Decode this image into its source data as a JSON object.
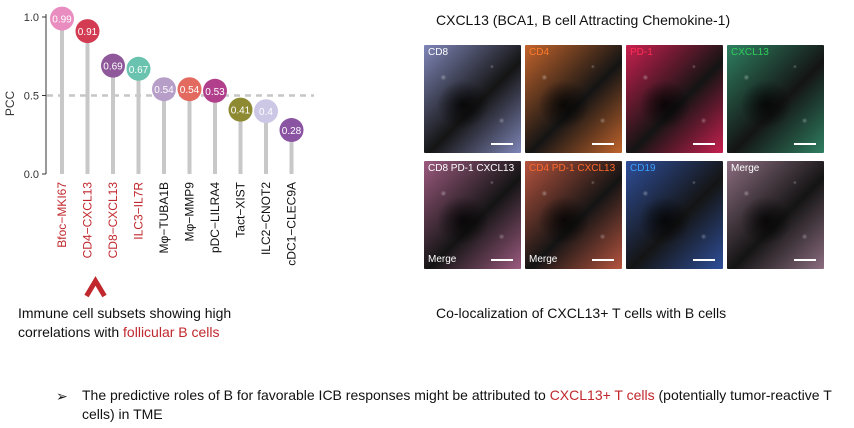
{
  "chart_data": {
    "type": "lollipop",
    "ylabel": "PCC",
    "ylim": [
      0,
      1.0
    ],
    "yticks": [
      "0.0",
      "0.5",
      "1.0"
    ],
    "reference_line": 0.5,
    "categories": [
      "Bfoc−MKI67",
      "CD4−CXCL13",
      "CD8−CXCL13",
      "ILC3−IL7R",
      "Mφ−TUBA1B",
      "Mφ−MMP9",
      "pDC−LILRA4",
      "Tact−XIST",
      "ILC2−CNOT2",
      "cDC1−CLEC9A"
    ],
    "values": [
      0.99,
      0.91,
      0.69,
      0.67,
      0.54,
      0.54,
      0.53,
      0.41,
      0.4,
      0.28
    ],
    "value_labels": [
      "0.99",
      "0.91",
      "0.69",
      "0.67",
      "0.54",
      "0.54",
      "0.53",
      "0.41",
      "0.4",
      "0.28"
    ],
    "colors": [
      "#e98cbf",
      "#d33b53",
      "#8f589a",
      "#6ac3ae",
      "#b79ec9",
      "#e36a5e",
      "#b13f8c",
      "#8e8a31",
      "#cbc7e4",
      "#8a54a3"
    ],
    "label_colors": [
      "#c0282d",
      "#c0282d",
      "#c0282d",
      "#c0282d",
      "#111111",
      "#111111",
      "#111111",
      "#111111",
      "#111111",
      "#111111"
    ],
    "highlight_arrow_index": 1
  },
  "left_caption": {
    "line1": "Immune cell subsets showing high",
    "line2_prefix": "correlations with ",
    "line2_highlight": "follicular B cells"
  },
  "right_panel": {
    "title": "CXCL13 (BCA1, B cell Attracting Chemokine-1)",
    "tiles": [
      {
        "label": "CD8",
        "label_color": "#ffffff",
        "tint": "#7f86b8",
        "merge": ""
      },
      {
        "label": "CD4",
        "label_color": "#ff7a2a",
        "tint": "#c2642c",
        "merge": ""
      },
      {
        "label": "PD-1",
        "label_color": "#ff2d55",
        "tint": "#c8204f",
        "merge": ""
      },
      {
        "label": "CXCL13",
        "label_color": "#2fcf5a",
        "tint": "#2f7f62",
        "merge": ""
      },
      {
        "label": "CD8 PD-1 CXCL13",
        "label_color": "#ffffff",
        "tint": "#9c5a7f",
        "merge": "Merge"
      },
      {
        "label": "CD4 PD-1 CXCL13",
        "label_color": "#ff6a2a",
        "tint": "#b6543f",
        "merge": "Merge"
      },
      {
        "label": "CD19",
        "label_color": "#3aa0ff",
        "tint": "#2f4f9a",
        "merge": ""
      },
      {
        "label": "Merge",
        "label_color": "#ffffff",
        "tint": "#8c6d80",
        "merge": ""
      }
    ],
    "caption": "Co-localization of CXCL13+ T cells with B cells"
  },
  "bullet": {
    "marker": "➢",
    "text_prefix": "The predictive roles of B for favorable ICB responses might be attributed to ",
    "text_highlight": "CXCL13+ T cells",
    "text_suffix": " (potentially tumor-reactive T cells) in TME"
  }
}
